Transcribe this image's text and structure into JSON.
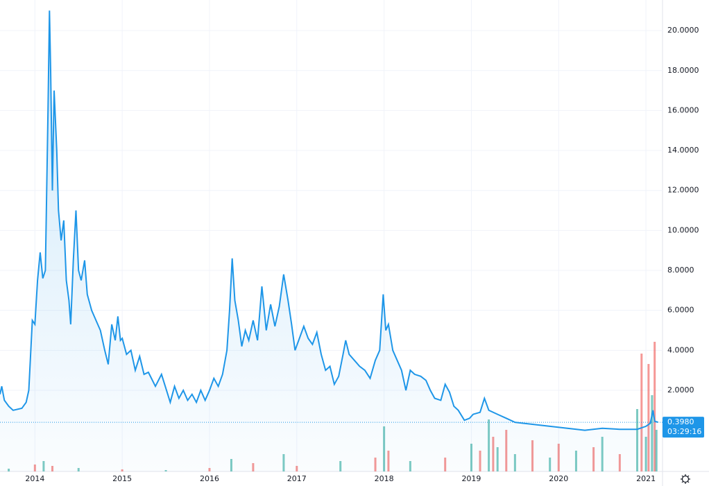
{
  "chart_data": {
    "type": "line",
    "x": [
      2013.6,
      2013.62,
      2013.65,
      2013.7,
      2013.75,
      2013.85,
      2013.9,
      2013.93,
      2013.97,
      2014.0,
      2014.03,
      2014.06,
      2014.09,
      2014.12,
      2014.15,
      2014.167,
      2014.18,
      2014.2,
      2014.22,
      2014.25,
      2014.27,
      2014.3,
      2014.33,
      2014.36,
      2014.39,
      2014.41,
      2014.44,
      2014.47,
      2014.5,
      2014.53,
      2014.57,
      2014.6,
      2014.65,
      2014.7,
      2014.75,
      2014.8,
      2014.84,
      2014.88,
      2014.92,
      2014.95,
      2014.98,
      2015.0,
      2015.05,
      2015.1,
      2015.15,
      2015.2,
      2015.25,
      2015.3,
      2015.38,
      2015.45,
      2015.5,
      2015.55,
      2015.6,
      2015.65,
      2015.7,
      2015.75,
      2015.8,
      2015.85,
      2015.9,
      2015.95,
      2016.0,
      2016.05,
      2016.1,
      2016.15,
      2016.2,
      2016.23,
      2016.26,
      2016.29,
      2016.33,
      2016.37,
      2016.41,
      2016.45,
      2016.5,
      2016.55,
      2016.6,
      2016.65,
      2016.7,
      2016.75,
      2016.8,
      2016.85,
      2016.9,
      2016.94,
      2016.98,
      2017.03,
      2017.08,
      2017.13,
      2017.18,
      2017.23,
      2017.28,
      2017.33,
      2017.38,
      2017.43,
      2017.48,
      2017.53,
      2017.56,
      2017.6,
      2017.66,
      2017.72,
      2017.78,
      2017.84,
      2017.9,
      2017.95,
      2017.99,
      2018.02,
      2018.05,
      2018.1,
      2018.15,
      2018.2,
      2018.25,
      2018.3,
      2018.35,
      2018.42,
      2018.48,
      2018.53,
      2018.58,
      2018.65,
      2018.7,
      2018.75,
      2018.8,
      2018.85,
      2018.92,
      2018.98,
      2019.02,
      2019.1,
      2019.15,
      2019.2,
      2019.3,
      2019.4,
      2019.5,
      2019.7,
      2019.9,
      2020.1,
      2020.3,
      2020.5,
      2020.7,
      2020.9,
      2021.0,
      2021.05,
      2021.08,
      2021.1,
      2021.14
    ],
    "series": [
      {
        "color": "#1e96e8",
        "values": [
          1.8,
          2.2,
          1.5,
          1.2,
          1.0,
          1.1,
          1.4,
          2.0,
          5.5,
          5.3,
          7.5,
          8.9,
          7.6,
          8.0,
          16.0,
          21.0,
          18.0,
          12.0,
          17.0,
          14.0,
          11.0,
          9.5,
          10.5,
          7.5,
          6.5,
          5.3,
          8.5,
          11.0,
          8.0,
          7.5,
          8.5,
          6.8,
          6.0,
          5.5,
          5.0,
          4.0,
          3.3,
          5.3,
          4.5,
          5.7,
          4.5,
          4.6,
          3.8,
          4.0,
          3.0,
          3.7,
          2.8,
          2.9,
          2.2,
          2.8,
          2.1,
          1.4,
          2.2,
          1.6,
          2.0,
          1.5,
          1.8,
          1.4,
          2.0,
          1.5,
          2.0,
          2.6,
          2.2,
          2.8,
          4.0,
          6.0,
          8.6,
          6.5,
          5.5,
          4.2,
          5.0,
          4.5,
          5.5,
          4.5,
          7.2,
          5.0,
          6.3,
          5.2,
          6.2,
          7.8,
          6.5,
          5.3,
          4.0,
          4.6,
          5.2,
          4.6,
          4.3,
          4.9,
          3.8,
          3.0,
          3.2,
          2.3,
          2.7,
          3.8,
          4.5,
          3.8,
          3.5,
          3.2,
          3.0,
          2.6,
          3.5,
          4.0,
          6.8,
          5.0,
          5.3,
          4.0,
          3.5,
          3.0,
          2.0,
          3.0,
          2.8,
          2.7,
          2.5,
          2.0,
          1.6,
          1.5,
          2.3,
          1.9,
          1.2,
          1.0,
          0.5,
          0.6,
          0.8,
          0.9,
          1.6,
          1.0,
          0.8,
          0.6,
          0.4,
          0.3,
          0.2,
          0.1,
          0.0,
          0.1,
          0.05,
          0.05,
          0.2,
          0.35,
          1.0,
          0.45,
          0.4
        ]
      }
    ],
    "xlim": [
      2013.6,
      2021.19
    ],
    "xticks": [
      2014,
      2015,
      2016,
      2017,
      2018,
      2019,
      2020,
      2021
    ],
    "ylim": [
      -2.06,
      21.53
    ],
    "yticks": [
      {
        "value": 2,
        "label": "2.0000"
      },
      {
        "value": 4,
        "label": "4.0000"
      },
      {
        "value": 6,
        "label": "6.0000"
      },
      {
        "value": 8,
        "label": "8.0000"
      },
      {
        "value": 10,
        "label": "10.0000"
      },
      {
        "value": 12,
        "label": "12.0000"
      },
      {
        "value": 14,
        "label": "14.0000"
      },
      {
        "value": 16,
        "label": "16.0000"
      },
      {
        "value": 18,
        "label": "18.0000"
      },
      {
        "value": 20,
        "label": "20.0000"
      }
    ],
    "grid": true,
    "last_price": {
      "value": 0.398,
      "label": "0.3980"
    },
    "countdown": "03:29:16",
    "volume": {
      "x": [
        2013.7,
        2014.0,
        2014.1,
        2014.2,
        2014.5,
        2015.0,
        2015.5,
        2016.0,
        2016.25,
        2016.5,
        2016.85,
        2017.0,
        2017.5,
        2017.9,
        2018.0,
        2018.05,
        2018.3,
        2018.7,
        2019.0,
        2019.1,
        2019.2,
        2019.25,
        2019.3,
        2019.4,
        2019.5,
        2019.7,
        2019.9,
        2020.0,
        2020.2,
        2020.4,
        2020.5,
        2020.7,
        2020.9,
        2020.95,
        2021.0,
        2021.03,
        2021.07,
        2021.1,
        2021.12
      ],
      "values": [
        4,
        10,
        15,
        8,
        5,
        3,
        2,
        5,
        18,
        12,
        25,
        8,
        15,
        20,
        65,
        30,
        15,
        20,
        40,
        30,
        75,
        50,
        35,
        60,
        25,
        45,
        20,
        40,
        30,
        35,
        50,
        25,
        90,
        170,
        50,
        155,
        110,
        187,
        60
      ],
      "colors": [
        "#26a69a",
        "#ef5350"
      ],
      "ylim": [
        0,
        200
      ]
    }
  }
}
